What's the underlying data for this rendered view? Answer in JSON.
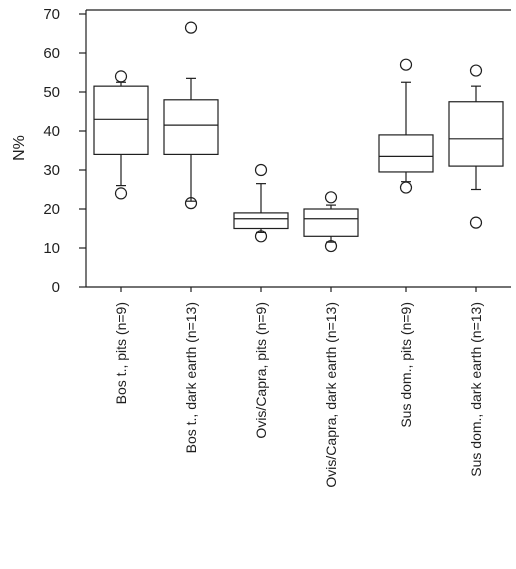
{
  "chart_data": {
    "type": "box",
    "ylabel": "N%",
    "ylim": [
      0,
      70
    ],
    "yticks": [
      0,
      10,
      20,
      30,
      40,
      50,
      60,
      70
    ],
    "grid": false,
    "legend": "none",
    "categories": [
      "Bos t., pits (n=9)",
      "Bos t., dark earth (n=13)",
      "Ovis/Capra, pits (n=9)",
      "Ovis/Capra, dark earth (n=13)",
      "Sus dom., pits (n=9)",
      "Sus dom., dark earth (n=13)"
    ],
    "boxes": [
      {
        "whisker_low": 26,
        "q1": 34,
        "median": 43,
        "q3": 51.5,
        "whisker_high": 52.5,
        "outliers": [
          24,
          54
        ]
      },
      {
        "whisker_low": 22,
        "q1": 34,
        "median": 41.5,
        "q3": 48,
        "whisker_high": 53.5,
        "outliers": [
          21.5,
          66.5
        ]
      },
      {
        "whisker_low": 14,
        "q1": 15,
        "median": 17.5,
        "q3": 19,
        "whisker_high": 26.5,
        "outliers": [
          13,
          30
        ]
      },
      {
        "whisker_low": 11.5,
        "q1": 13,
        "median": 17.5,
        "q3": 20,
        "whisker_high": 21,
        "outliers": [
          10.5,
          23
        ]
      },
      {
        "whisker_low": 27,
        "q1": 29.5,
        "median": 33.5,
        "q3": 39,
        "whisker_high": 52.5,
        "outliers": [
          25.5,
          57
        ]
      },
      {
        "whisker_low": 25,
        "q1": 31,
        "median": 38,
        "q3": 47.5,
        "whisker_high": 51.5,
        "outliers": [
          16.5,
          55.5
        ]
      }
    ]
  }
}
